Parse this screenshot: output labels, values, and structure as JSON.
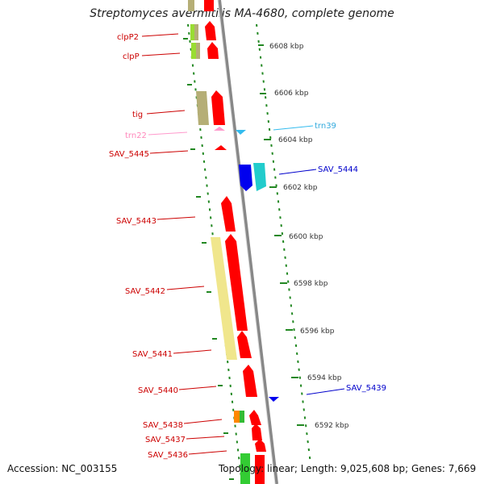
{
  "title": "Streptomyces avermitilis MA-4680, complete genome",
  "accession": "Accession: NC_003155",
  "summary": "Topology: linear; Length: 9,025,608 bp; Genes: 7,669",
  "colors": {
    "red": "#ff0000",
    "dark_red_label": "#cc0000",
    "khaki": "#b5ae76",
    "light_khaki": "#f0e68c",
    "lime": "#99dd33",
    "pink": "#ff99cc",
    "cyan": "#33bbee",
    "blue": "#0000cc",
    "teal": "#22cccc",
    "orange": "#ff8800",
    "green": "#33bb33",
    "backbone": "#888888",
    "ruler": "#228822"
  },
  "ticks": [
    "6608 kbp",
    "6606 kbp",
    "6604 kbp",
    "6602 kbp",
    "6600 kbp",
    "6598 kbp",
    "6596 kbp",
    "6594 kbp",
    "6592 kbp"
  ],
  "left_labels": [
    "clpP2",
    "clpP",
    "tig",
    "trn22",
    "SAV_5445",
    "SAV_5443",
    "SAV_5442",
    "SAV_5441",
    "SAV_5440",
    "SAV_5438",
    "SAV_5437",
    "SAV_5436"
  ],
  "right_labels": [
    "trn39",
    "SAV_5444",
    "SAV_5439"
  ]
}
